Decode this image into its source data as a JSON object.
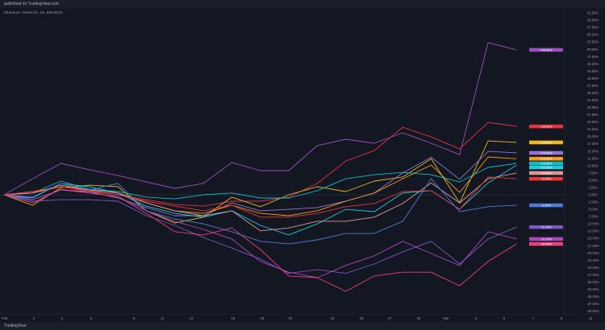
{
  "header": {
    "published_text": "published on TradingView.com"
  },
  "legend": {
    "symbol": "Ethereum / TetherUS, 1D, BINANCE"
  },
  "footer": {
    "brand": "TradingView"
  },
  "colors": {
    "background": "#131722",
    "grid": "#1f2330",
    "text": "#b2b5be"
  },
  "chart_data": {
    "type": "line",
    "xlabel": "",
    "ylabel": "",
    "y_unit": "%",
    "ylim": [
      -40,
      62.5
    ],
    "y_ticks": [
      62.5,
      60,
      57.5,
      55,
      52.5,
      50,
      47.5,
      45,
      42.5,
      40,
      37.5,
      35,
      32.5,
      30,
      27.5,
      25,
      22.5,
      20,
      17.5,
      15,
      12.5,
      10,
      7.5,
      5,
      2.5,
      0,
      -2.5,
      -5,
      -7.5,
      -10,
      -12.5,
      -15,
      -17.5,
      -20,
      -22.5,
      -25,
      -27.5,
      -30,
      -32.5,
      -35,
      -37.5,
      -40
    ],
    "x_tick_labels": [
      "Feb",
      "2",
      "4",
      "6",
      "9",
      "11",
      "13",
      "16",
      "18",
      "20",
      "23",
      "25",
      "27",
      "29",
      "Mar",
      "3",
      "5",
      "7",
      "9",
      "11"
    ],
    "grid": false,
    "series": [
      {
        "color": "#9c4fc0",
        "values": [
          0,
          5.5,
          10.8,
          8.6,
          6.6,
          4.4,
          2.2,
          3.9,
          11.1,
          8.3,
          8.3,
          16.9,
          19.1,
          17.7,
          21.3,
          17.7,
          13.8,
          52.3,
          49.8
        ]
      },
      {
        "color": "#e0323f",
        "values": [
          0,
          1.1,
          2.8,
          1.1,
          0,
          -1.7,
          -3.3,
          -3.9,
          -2.2,
          -2.2,
          -0.8,
          3.9,
          11.6,
          15.2,
          23.2,
          19.9,
          15.8,
          24.9,
          23.5
        ]
      },
      {
        "color": "#e8b923",
        "values": [
          0,
          -3.6,
          2.5,
          3.3,
          2.8,
          -5.5,
          -9.7,
          -7.7,
          -0.8,
          -4.1,
          0,
          2.8,
          1.1,
          4.7,
          6.1,
          12.4,
          -2.8,
          18.5,
          18.0
        ]
      },
      {
        "color": "#9575cd",
        "values": [
          0,
          -1.7,
          1.7,
          1.1,
          -1.1,
          -4.4,
          -7.2,
          -7.2,
          -2.8,
          -5.5,
          -5,
          -4.4,
          -2.2,
          0.6,
          7.5,
          12.9,
          5.3,
          14.9,
          14.4
        ]
      },
      {
        "color": "#f59c1a",
        "values": [
          0,
          0.6,
          2.8,
          1.7,
          0.6,
          -2.8,
          -5.5,
          -6.4,
          -3.6,
          -6.4,
          -7.2,
          -5.5,
          -2.2,
          0.6,
          5.5,
          10.2,
          0.8,
          13,
          12.4
        ]
      },
      {
        "color": "#14b8c9",
        "values": [
          0,
          0.6,
          4.7,
          1.9,
          1.1,
          -0.8,
          -1.4,
          0,
          0.6,
          -1.1,
          -1.1,
          1.4,
          5.5,
          6.9,
          7.7,
          6.9,
          4.4,
          9.4,
          10.8
        ]
      },
      {
        "color": "#26c6da",
        "values": [
          0,
          -1.1,
          3.9,
          2.8,
          0.6,
          -3.9,
          -6.4,
          -7.7,
          -5.5,
          -10.5,
          -13.8,
          -10,
          -5,
          -5.8,
          0.6,
          1.4,
          -5,
          4.1,
          10.2
        ]
      },
      {
        "color": "#d99a95",
        "values": [
          0,
          0.6,
          3.3,
          1.7,
          0.6,
          -2.8,
          -5.5,
          -7.2,
          -5.5,
          -12.4,
          -11.4,
          -9.1,
          -9.1,
          -7.7,
          -3,
          4.1,
          -2.8,
          5.5,
          7.5
        ]
      },
      {
        "color": "#e53935",
        "values": [
          0,
          1.1,
          2.8,
          1.4,
          0,
          -2.2,
          -3.9,
          -5.5,
          -3.6,
          -7.7,
          -7.7,
          -6.4,
          -4.1,
          -3,
          1.1,
          1.4,
          -5,
          6.1,
          5.5
        ]
      },
      {
        "color": "#4a7bd8",
        "values": [
          0,
          -0.8,
          3.9,
          1.7,
          3.9,
          -5.5,
          -8.3,
          -10,
          -12.7,
          -16,
          -16.9,
          -15.5,
          -13.3,
          -13.3,
          -9.1,
          5.5,
          -5.8,
          -4.1,
          -3.6
        ]
      },
      {
        "color": "#7e57c2",
        "values": [
          0,
          -2.2,
          -1.7,
          -1.7,
          -2.2,
          -7.2,
          -10.5,
          -14.7,
          -18.3,
          -22.1,
          -27,
          -25.7,
          -27,
          -23.8,
          -19.6,
          -16,
          -23.8,
          -15.2,
          -11.1
        ]
      },
      {
        "color": "#ab47bc",
        "values": [
          0,
          -1.7,
          1.7,
          0.6,
          -0.6,
          -5.5,
          -9.1,
          -11.9,
          -15.2,
          -22.9,
          -26.6,
          -28.5,
          -24.3,
          -21,
          -16,
          -20.2,
          -24.3,
          -12.7,
          -15.2
        ]
      },
      {
        "color": "#ec407a",
        "values": [
          0,
          -2.8,
          1.9,
          0.6,
          -0.6,
          -6.4,
          -12.7,
          -13.8,
          -11.4,
          -18.8,
          -27.9,
          -28.5,
          -33.2,
          -27.9,
          -26.6,
          -26.6,
          -31.3,
          -22.9,
          -16.9
        ]
      }
    ]
  }
}
